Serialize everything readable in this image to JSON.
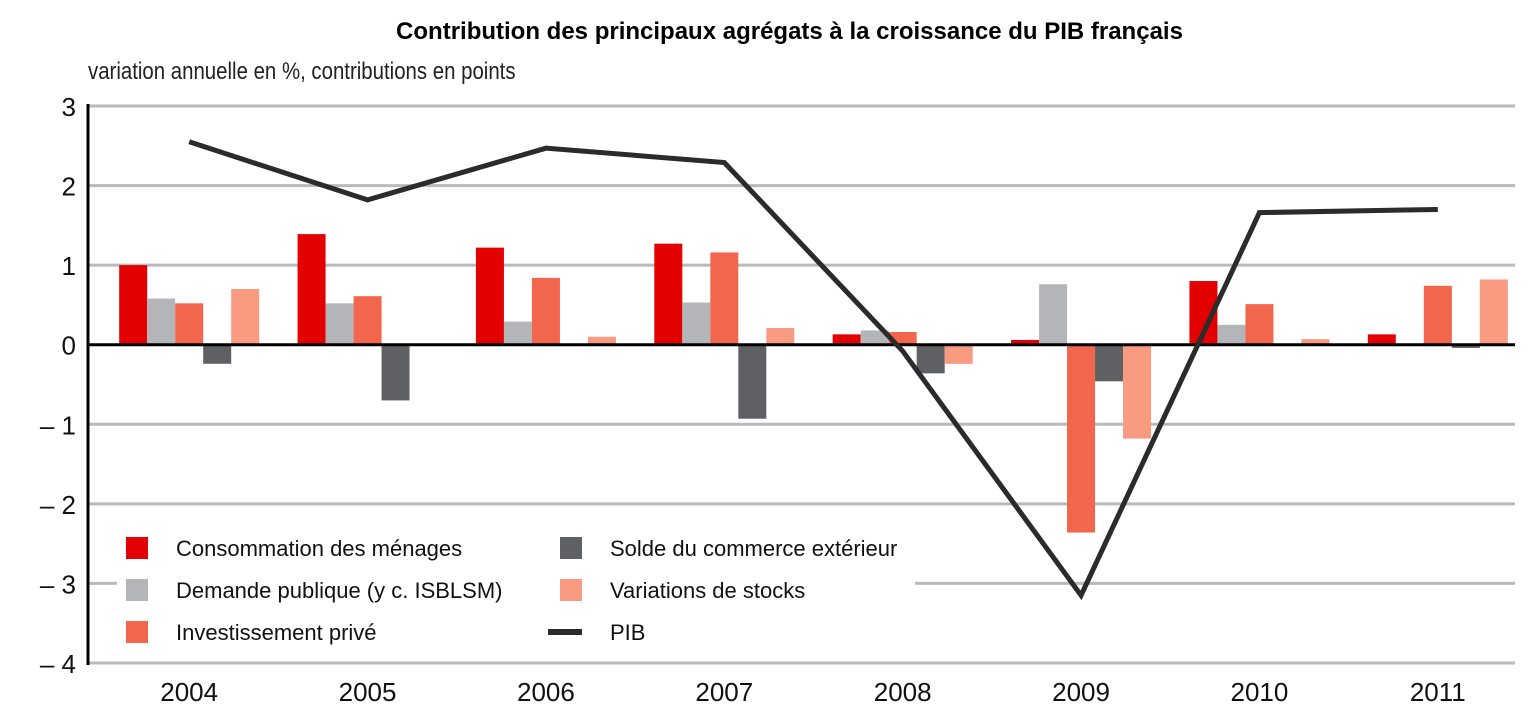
{
  "chart_data": {
    "type": "bar",
    "title": "Contribution des principaux agrégats à la croissance du PIB français",
    "subtitle": "variation annuelle en %, contributions en points",
    "xlabel": "",
    "ylabel": "",
    "ylim": [
      -4,
      3
    ],
    "yticks": [
      3,
      2,
      1,
      0,
      -1,
      -2,
      -3,
      -4
    ],
    "ytick_labels": [
      "3",
      "2",
      "1",
      "0",
      "– 1",
      "– 2",
      "– 3",
      "– 4"
    ],
    "grid": true,
    "legend_position": "bottom-left",
    "categories": [
      "2004",
      "2005",
      "2006",
      "2007",
      "2008",
      "2009",
      "2010",
      "2011"
    ],
    "series": [
      {
        "name": "Consommation des ménages",
        "kind": "bar",
        "color": "#e30000",
        "values": [
          1.0,
          1.39,
          1.22,
          1.27,
          0.13,
          0.06,
          0.8,
          0.13
        ]
      },
      {
        "name": "Demande publique (y c. ISBLSM)",
        "kind": "bar",
        "color": "#b4b5b8",
        "values": [
          0.58,
          0.52,
          0.29,
          0.53,
          0.18,
          0.76,
          0.25,
          0.0
        ]
      },
      {
        "name": "Investissement privé",
        "kind": "bar",
        "color": "#f1664c",
        "values": [
          0.52,
          0.61,
          0.84,
          1.16,
          0.16,
          -2.36,
          0.51,
          0.74
        ]
      },
      {
        "name": "Solde du commerce extérieur",
        "kind": "bar",
        "color": "#5f6064",
        "values": [
          -0.24,
          -0.7,
          0.0,
          -0.93,
          -0.36,
          -0.46,
          -0.01,
          -0.04
        ]
      },
      {
        "name": "Variations de stocks",
        "kind": "bar",
        "color": "#f89b80",
        "values": [
          0.7,
          0.0,
          0.1,
          0.21,
          -0.24,
          -1.18,
          0.07,
          0.82
        ]
      },
      {
        "name": "PIB",
        "kind": "line",
        "color": "#2b2b2b",
        "values": [
          2.55,
          1.82,
          2.47,
          2.29,
          -0.08,
          -3.15,
          1.66,
          1.7
        ]
      }
    ]
  }
}
